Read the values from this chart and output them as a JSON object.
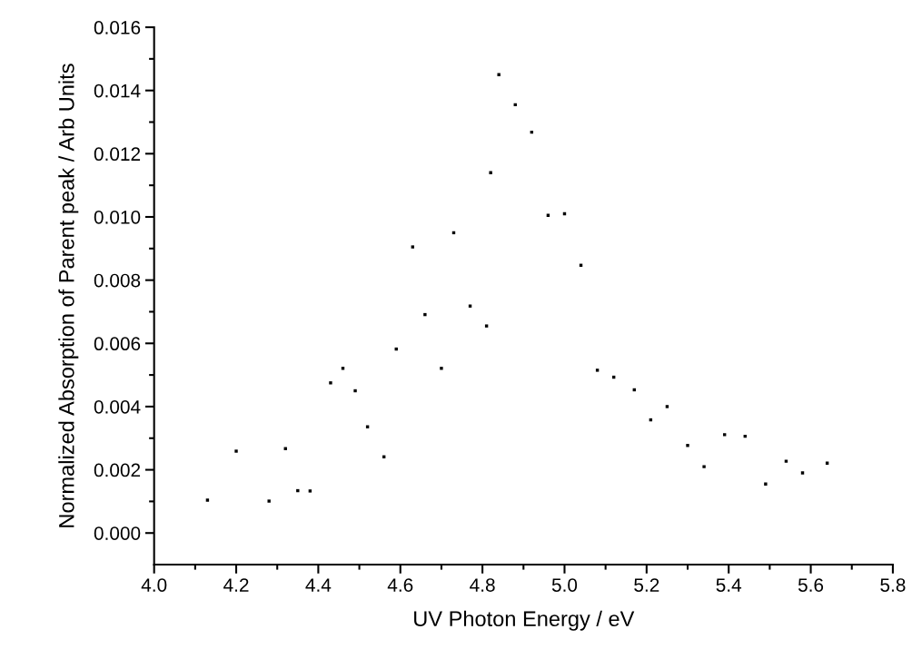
{
  "chart_data": {
    "type": "scatter",
    "xlabel": "UV Photon Energy / eV",
    "ylabel": "Normalized Absorption of Parent peak / Arb Units",
    "x": [
      4.13,
      4.2,
      4.28,
      4.32,
      4.35,
      4.38,
      4.43,
      4.46,
      4.49,
      4.52,
      4.56,
      4.59,
      4.63,
      4.66,
      4.7,
      4.73,
      4.77,
      4.81,
      4.82,
      4.84,
      4.88,
      4.92,
      4.96,
      5.0,
      5.04,
      5.08,
      5.12,
      5.17,
      5.21,
      5.25,
      5.3,
      5.34,
      5.39,
      5.44,
      5.49,
      5.54,
      5.58,
      5.64
    ],
    "values": [
      0.00104,
      0.00259,
      0.00101,
      0.00267,
      0.00134,
      0.00133,
      0.00475,
      0.00521,
      0.0045,
      0.00336,
      0.00241,
      0.00582,
      0.00905,
      0.00691,
      0.00521,
      0.0095,
      0.00718,
      0.00655,
      0.0114,
      0.0145,
      0.01355,
      0.01268,
      0.01005,
      0.0101,
      0.00847,
      0.00515,
      0.00493,
      0.00453,
      0.00358,
      0.004,
      0.00277,
      0.0021,
      0.00311,
      0.00306,
      0.00155,
      0.00227,
      0.0019,
      0.00221
    ],
    "color": "#000000",
    "marker": "square",
    "grid": false,
    "xlim": [
      4.0,
      5.8
    ],
    "xticks": [
      {
        "value": 4.0,
        "label": "4.0"
      },
      4.2,
      4.4,
      4.6,
      4.8,
      {
        "value": 5.0,
        "label": "5.0"
      },
      5.2,
      5.4,
      5.6,
      5.8
    ],
    "ylim": [
      -0.001,
      0.016
    ],
    "yticks": [
      {
        "value": 0,
        "label": "0.000"
      },
      {
        "value": 0.002,
        "label": "0.002"
      },
      {
        "value": 0.004,
        "label": "0.004"
      },
      {
        "value": 0.006,
        "label": "0.006"
      },
      {
        "value": 0.008,
        "label": "0.008"
      },
      {
        "value": 0.01,
        "label": "0.010"
      },
      {
        "value": 0.012,
        "label": "0.012"
      },
      {
        "value": 0.014,
        "label": "0.014"
      },
      {
        "value": 0.016,
        "label": "0.016"
      }
    ]
  }
}
